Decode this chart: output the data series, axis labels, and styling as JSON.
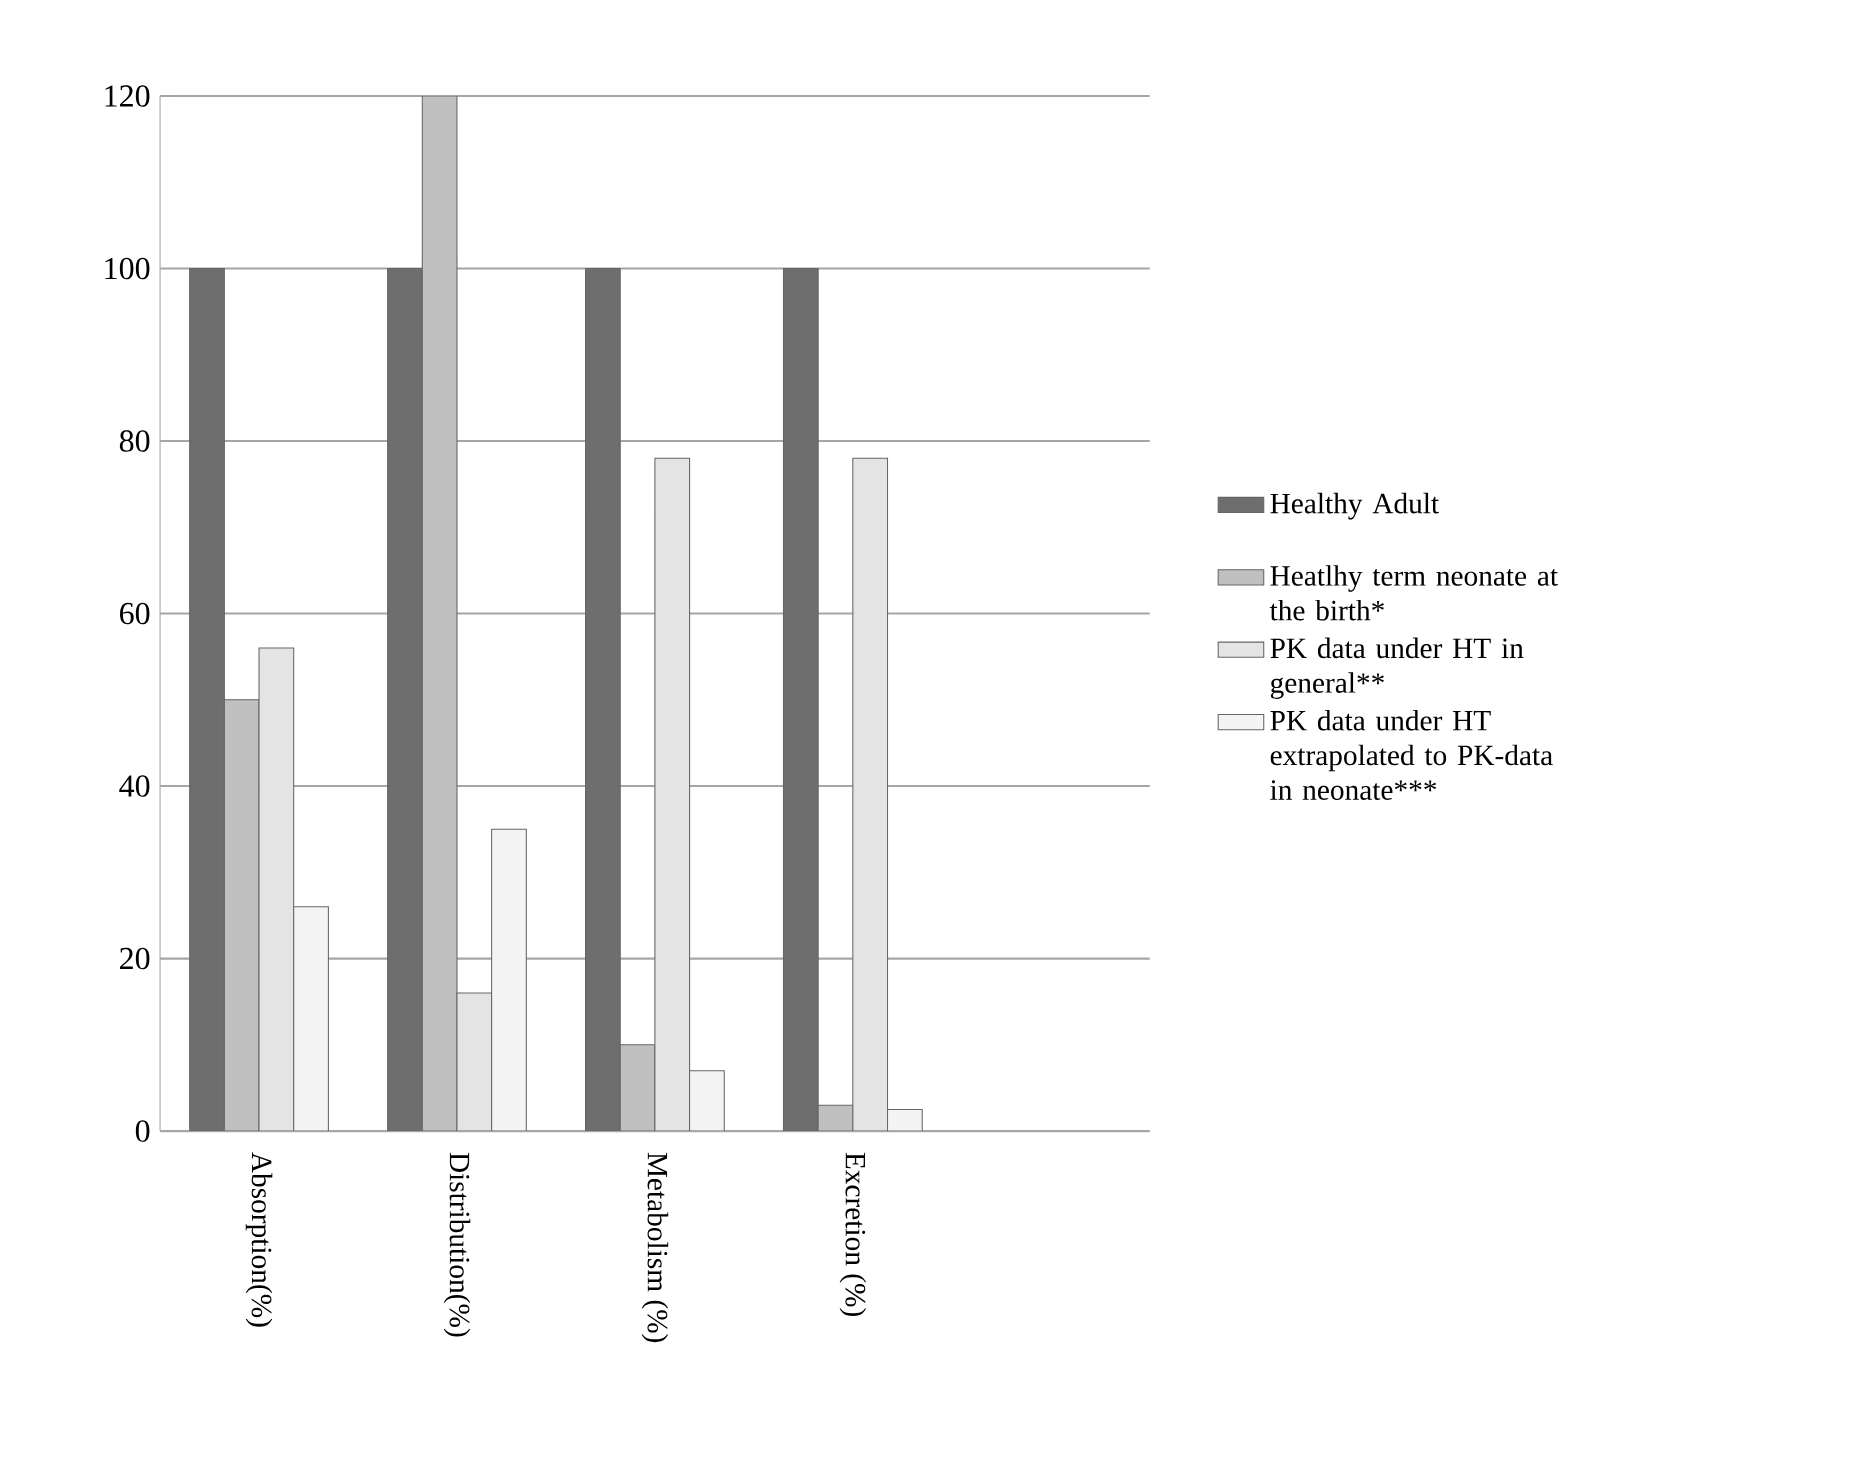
{
  "chart_data": {
    "type": "bar",
    "categories": [
      "Absorption(%)",
      "Distribution(%)",
      "Metabolism (%)",
      "Excretion (%)"
    ],
    "series": [
      {
        "name": "Healthy Adult",
        "color": "#6e6e6e",
        "values": [
          100,
          100,
          100,
          100
        ]
      },
      {
        "name": "Heatlhy term neonate at the birth*",
        "color": "#c0c0c0",
        "values": [
          50,
          120,
          10,
          3
        ]
      },
      {
        "name": "PK data under HT in general**",
        "color": "#e4e4e4",
        "values": [
          56,
          16,
          78,
          78
        ]
      },
      {
        "name": "PK data under HT extrapolated to PK-data in neonate***",
        "color": "#f4f4f4",
        "values": [
          26,
          35,
          7,
          2.5
        ]
      }
    ],
    "ylim": [
      0,
      120
    ],
    "yticks": [
      0,
      20,
      40,
      60,
      80,
      100,
      120
    ],
    "grid": "y",
    "legend": "right"
  }
}
